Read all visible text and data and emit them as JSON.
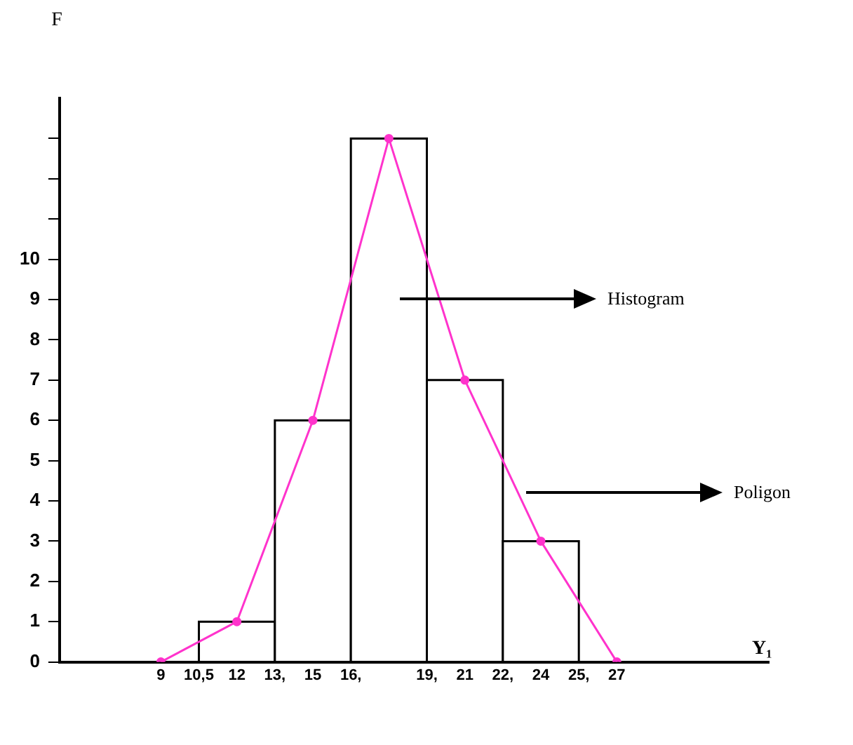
{
  "chart_data": {
    "type": "histogram",
    "ylabel": "F",
    "xlabel": "Y₁",
    "series": [
      {
        "bins": [
          10.5,
          13.5,
          16.5,
          19.5,
          22.5,
          25.5
        ],
        "values": [
          1,
          6,
          13,
          7,
          3
        ],
        "color": "#000000"
      },
      {
        "type": "line",
        "x": [
          9,
          12,
          15,
          18,
          21,
          24,
          27
        ],
        "values": [
          0,
          1,
          6,
          13,
          7,
          3,
          0
        ],
        "color": "#ff33cc",
        "marker": "circle"
      }
    ],
    "xlim": [
      5,
      33
    ],
    "xticks": [
      {
        "value": 9,
        "label": "9"
      },
      {
        "value": 10.5,
        "label": "10,5"
      },
      {
        "value": 12,
        "label": "12"
      },
      {
        "value": 13.5,
        "label": "13,"
      },
      {
        "value": 15,
        "label": "15"
      },
      {
        "value": 16.5,
        "label": "16,"
      },
      {
        "value": 19.5,
        "label": "19,"
      },
      {
        "value": 21,
        "label": "21"
      },
      {
        "value": 22.5,
        "label": "22,"
      },
      {
        "value": 24,
        "label": "24"
      },
      {
        "value": 25.5,
        "label": "25,"
      },
      {
        "value": 27,
        "label": "27"
      }
    ],
    "ylim": [
      0,
      14
    ],
    "yticks": [
      0,
      1,
      2,
      3,
      4,
      5,
      6,
      7,
      8,
      9,
      10,
      {
        "value": 11,
        "label": null
      },
      {
        "value": 12,
        "label": null
      },
      {
        "value": 13,
        "label": null
      }
    ],
    "annotations": [
      "Histogram",
      "Poligon"
    ],
    "legend": false
  }
}
